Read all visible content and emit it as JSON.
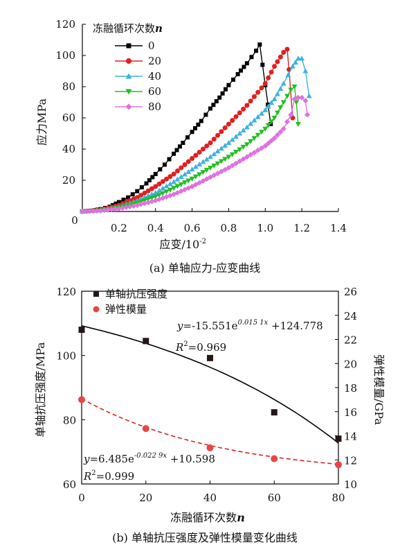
{
  "chart_data": [
    {
      "type": "line",
      "caption": "(a) 单轴应力-应变曲线",
      "xlabel": "应变/10",
      "xlabel_exp": "-2",
      "ylabel": "应力MPa",
      "xlim": [
        0,
        1.4
      ],
      "ylim": [
        0,
        120
      ],
      "xticks": [
        "0.2",
        "0.4",
        "0.6",
        "0.8",
        "1.0",
        "1.2",
        "1.4"
      ],
      "yticks": [
        "20",
        "40",
        "60",
        "80",
        "100",
        "120"
      ],
      "origin_label": "0",
      "legend_title": "冻融循环次数",
      "legend_title_var": "n",
      "legend_position": "top-left",
      "grid": false,
      "series": [
        {
          "name": "0",
          "color": "#000000",
          "marker": "square",
          "x": [
            0,
            0.05,
            0.1,
            0.15,
            0.2,
            0.25,
            0.3,
            0.35,
            0.4,
            0.45,
            0.5,
            0.55,
            0.6,
            0.65,
            0.7,
            0.75,
            0.8,
            0.85,
            0.9,
            0.95,
            0.97,
            1.0,
            1.03
          ],
          "y": [
            0,
            0.5,
            1.5,
            3,
            6,
            9,
            13,
            18,
            24,
            30,
            37,
            44,
            51,
            58,
            66,
            73,
            81,
            88,
            95,
            103,
            107,
            81,
            56
          ]
        },
        {
          "name": "20",
          "color": "#e02020",
          "marker": "circle",
          "x": [
            0,
            0.1,
            0.2,
            0.3,
            0.4,
            0.5,
            0.6,
            0.7,
            0.8,
            0.9,
            1.0,
            1.05,
            1.1,
            1.12,
            1.13,
            1.15
          ],
          "y": [
            0,
            1,
            4,
            9,
            16,
            24,
            34,
            44,
            56,
            68,
            82,
            93,
            102,
            104,
            91,
            60
          ]
        },
        {
          "name": "40",
          "color": "#40b0e0",
          "marker": "triangle-up",
          "x": [
            0,
            0.1,
            0.2,
            0.3,
            0.4,
            0.5,
            0.6,
            0.7,
            0.8,
            0.9,
            1.0,
            1.05,
            1.1,
            1.15,
            1.18,
            1.2,
            1.22,
            1.24
          ],
          "y": [
            0,
            0.8,
            3,
            7,
            12,
            19,
            27,
            35,
            44,
            54,
            65,
            72,
            82,
            93,
            98,
            98,
            90,
            74
          ]
        },
        {
          "name": "60",
          "color": "#20c020",
          "marker": "triangle-down",
          "x": [
            0,
            0.1,
            0.2,
            0.3,
            0.4,
            0.5,
            0.6,
            0.7,
            0.8,
            0.9,
            1.0,
            1.05,
            1.1,
            1.14,
            1.16,
            1.17,
            1.18
          ],
          "y": [
            0,
            0.6,
            2.5,
            5.5,
            9.5,
            15,
            21,
            28,
            35,
            43,
            53,
            60,
            70,
            78,
            80,
            70,
            56
          ]
        },
        {
          "name": "80",
          "color": "#e070e0",
          "marker": "diamond",
          "x": [
            0,
            0.1,
            0.2,
            0.3,
            0.4,
            0.5,
            0.6,
            0.7,
            0.8,
            0.9,
            1.0,
            1.05,
            1.1,
            1.14,
            1.16,
            1.18,
            1.2,
            1.22,
            1.23
          ],
          "y": [
            0,
            0.5,
            1.8,
            4,
            7,
            11,
            16,
            22,
            28,
            35,
            42,
            47,
            53,
            62,
            72,
            73,
            73,
            71,
            62
          ]
        }
      ]
    },
    {
      "type": "scatter",
      "caption": "(b) 单轴抗压强度及弹性模量变化曲线",
      "xlabel": "冻融循环次数",
      "xlabel_var": "n",
      "ylabel_left": "单轴抗压强度/MPa",
      "ylabel_right": "弹性模量/GPa",
      "xlim": [
        0,
        80
      ],
      "ylim_left": [
        60,
        120
      ],
      "ylim_right": [
        10,
        26
      ],
      "xticks": [
        "0",
        "20",
        "40",
        "60",
        "80"
      ],
      "yticks_left": [
        "60",
        "80",
        "100",
        "120"
      ],
      "yticks_right": [
        "10",
        "12",
        "14",
        "16",
        "18",
        "20",
        "22",
        "24",
        "26"
      ],
      "legend_position": "top-left",
      "grid": false,
      "series": [
        {
          "name": "单轴抗压强度",
          "color": "#231816",
          "marker": "square",
          "axis": "left",
          "x": [
            0,
            20,
            40,
            60,
            80
          ],
          "y": [
            108,
            104.5,
            99.2,
            82.3,
            74.1
          ],
          "fit": {
            "a": -15.551,
            "b": 0.0151,
            "c": 124.778,
            "style": "solid",
            "color": "#000000"
          }
        },
        {
          "name": "弹性模量",
          "color": "#e84545",
          "marker": "circle",
          "axis": "right",
          "x": [
            0,
            20,
            40,
            60,
            80
          ],
          "y": [
            17.0,
            14.6,
            13.0,
            12.1,
            11.6
          ],
          "fit": {
            "a": 6.485,
            "b": -0.0229,
            "c": 10.598,
            "style": "dashed",
            "color": "#e02020"
          }
        }
      ],
      "annotations": {
        "fit1_prefix": "y",
        "fit1_eq": "=-15.551e",
        "fit1_exp": "0.015 1x",
        "fit1_tail": " +124.778",
        "fit1_r2_label": "R",
        "fit1_r2_sup": "2",
        "fit1_r2_val": "=0.969",
        "fit2_prefix": "y",
        "fit2_eq": "=6.485e",
        "fit2_exp": "-0.022 9x",
        "fit2_tail": " +10.598",
        "fit2_r2_label": "R",
        "fit2_r2_sup": "2",
        "fit2_r2_val": "=0.999"
      }
    }
  ]
}
